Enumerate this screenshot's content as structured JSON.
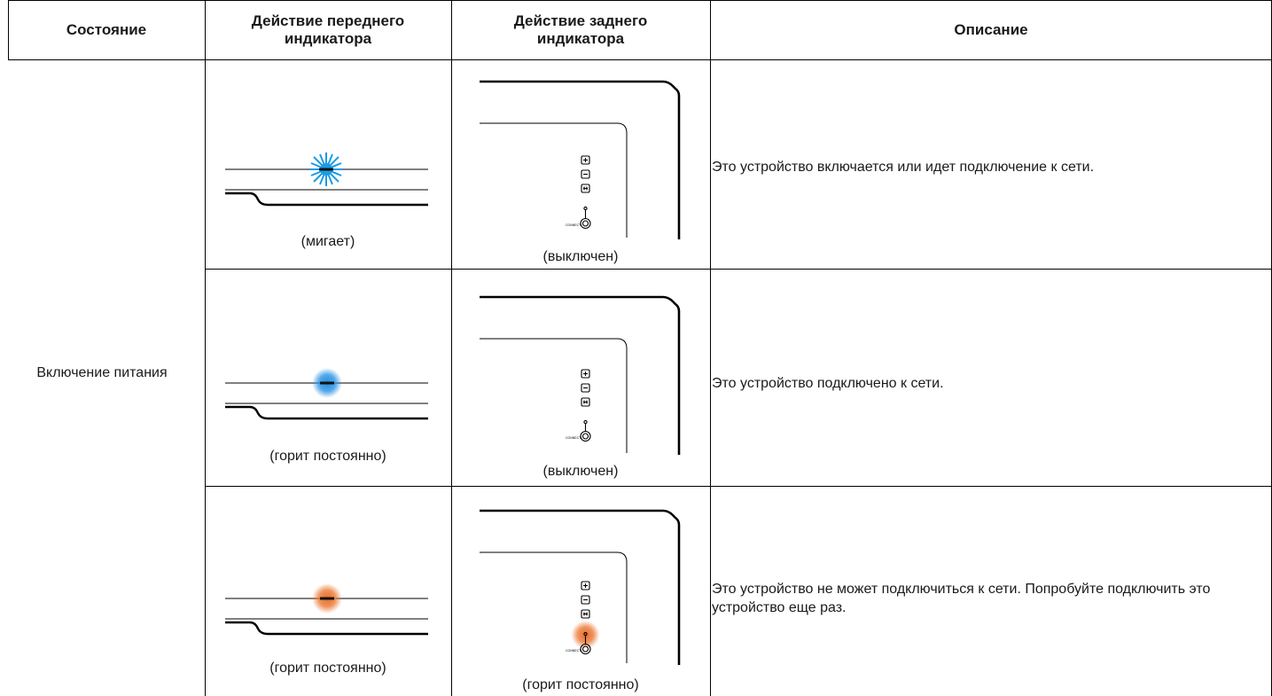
{
  "headers": {
    "state": "Состояние",
    "front": "Действие переднего индикатора",
    "rear": "Действие заднего индикатора",
    "description": "Описание"
  },
  "state": "Включение питания",
  "rows": [
    {
      "front_caption": "(мигает)",
      "rear_caption": "(выключен)",
      "description": "Это устройство включается или идет подключение к сети.",
      "front_icon": "blue-blinking-led-icon",
      "rear_icon": "rear-panel-icon",
      "front_color": "#1b9be3"
    },
    {
      "front_caption": "(горит постоянно)",
      "rear_caption": "(выключен)",
      "description": "Это устройство подключено к сети.",
      "front_icon": "blue-steady-led-icon",
      "rear_icon": "rear-panel-icon",
      "front_color": "#2a8fe0"
    },
    {
      "front_caption": "(горит постоянно)",
      "rear_caption": "(горит постоянно)",
      "description": "Это устройство не может подключиться к сети. Попробуйте подключить это устройство еще раз.",
      "front_icon": "orange-steady-led-icon",
      "rear_icon": "rear-panel-orange-led-icon",
      "front_color": "#e8742a"
    }
  ]
}
